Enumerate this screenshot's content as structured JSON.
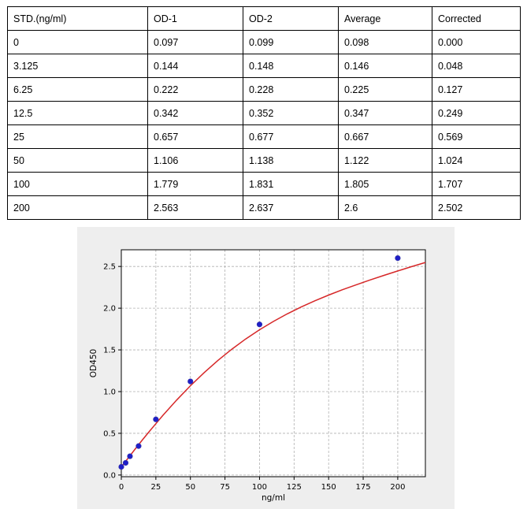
{
  "table": {
    "headers": [
      "STD.(ng/ml)",
      "OD-1",
      "OD-2",
      "Average",
      "Corrected"
    ],
    "rows": [
      [
        "0",
        "0.097",
        "0.099",
        "0.098",
        "0.000"
      ],
      [
        "3.125",
        "0.144",
        "0.148",
        "0.146",
        "0.048"
      ],
      [
        "6.25",
        "0.222",
        "0.228",
        "0.225",
        "0.127"
      ],
      [
        "12.5",
        "0.342",
        "0.352",
        "0.347",
        "0.249"
      ],
      [
        "25",
        "0.657",
        "0.677",
        "0.667",
        "0.569"
      ],
      [
        "50",
        "1.106",
        "1.138",
        "1.122",
        "1.024"
      ],
      [
        "100",
        "1.779",
        "1.831",
        "1.805",
        "1.707"
      ],
      [
        "200",
        "2.563",
        "2.637",
        "2.6",
        "2.502"
      ]
    ]
  },
  "chart_data": {
    "type": "scatter",
    "xlabel": "ng/ml",
    "ylabel": "OD450",
    "xlim": [
      0,
      220
    ],
    "ylim": [
      -0.02,
      2.7
    ],
    "xticks": [
      0,
      25,
      50,
      75,
      100,
      125,
      150,
      175,
      200
    ],
    "yticks": [
      0.0,
      0.5,
      1.0,
      1.5,
      2.0,
      2.5
    ],
    "grid": true,
    "point_color": "#1f1fc8",
    "curve_color": "#d62728",
    "points": {
      "x": [
        0,
        3.125,
        6.25,
        12.5,
        25,
        50,
        100,
        200
      ],
      "y": [
        0.098,
        0.146,
        0.225,
        0.347,
        0.667,
        1.122,
        1.805,
        2.6
      ]
    },
    "fit_curve": {
      "x": [
        0,
        5,
        10,
        15,
        20,
        25,
        30,
        40,
        50,
        60,
        70,
        80,
        90,
        100,
        110,
        120,
        130,
        140,
        150,
        160,
        170,
        180,
        190,
        200,
        210,
        220
      ],
      "y": [
        0.098,
        0.205,
        0.311,
        0.415,
        0.517,
        0.616,
        0.713,
        0.898,
        1.07,
        1.229,
        1.375,
        1.509,
        1.631,
        1.741,
        1.841,
        1.931,
        2.013,
        2.088,
        2.157,
        2.221,
        2.281,
        2.338,
        2.393,
        2.446,
        2.498,
        2.548
      ]
    }
  }
}
